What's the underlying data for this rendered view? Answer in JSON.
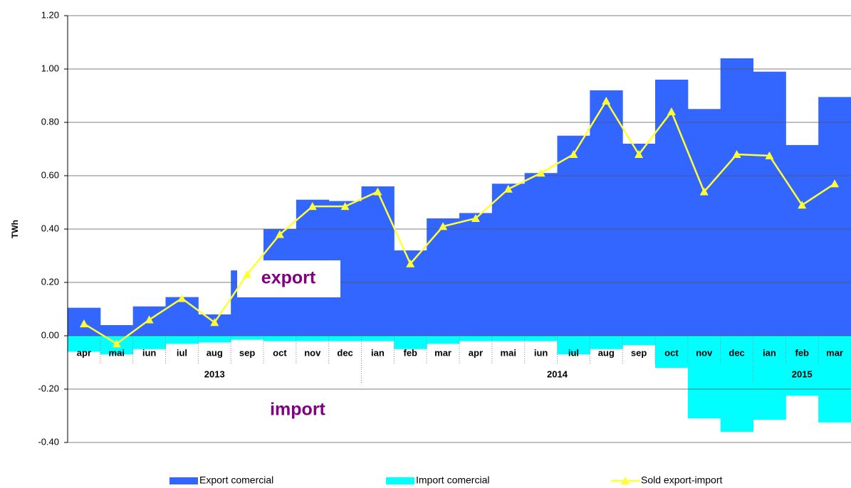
{
  "chart_data": {
    "type": "bar_line",
    "y_axis_label": "TWh",
    "categories": [
      "apr",
      "mai",
      "iun",
      "iul",
      "aug",
      "sep",
      "oct",
      "nov",
      "dec",
      "ian",
      "feb",
      "mar",
      "apr",
      "mai",
      "iun",
      "iul",
      "aug",
      "sep",
      "oct",
      "nov",
      "dec",
      "ian",
      "feb",
      "mar"
    ],
    "years": [
      "2013",
      "2014",
      "2015"
    ],
    "series": [
      {
        "name": "Export comercial",
        "color": "#3366ff",
        "kind": "area-bar",
        "values": [
          0.105,
          0.04,
          0.11,
          0.145,
          0.08,
          0.245,
          0.4,
          0.51,
          0.505,
          0.56,
          0.32,
          0.44,
          0.46,
          0.57,
          0.61,
          0.75,
          0.92,
          0.72,
          0.96,
          0.85,
          1.04,
          0.99,
          0.715,
          0.895
        ]
      },
      {
        "name": "Import comercial",
        "color": "#00ffff",
        "kind": "area-bar",
        "values": [
          -0.06,
          -0.07,
          -0.05,
          -0.03,
          -0.025,
          -0.015,
          -0.02,
          -0.02,
          -0.02,
          -0.02,
          -0.05,
          -0.03,
          -0.02,
          -0.02,
          -0.02,
          -0.07,
          -0.05,
          -0.035,
          -0.12,
          -0.31,
          -0.36,
          -0.315,
          -0.225,
          -0.325
        ]
      },
      {
        "name": "Sold export-import",
        "color": "#ffff33",
        "kind": "line",
        "values": [
          0.045,
          -0.03,
          0.06,
          0.14,
          0.05,
          0.23,
          0.38,
          0.485,
          0.485,
          0.54,
          0.27,
          0.41,
          0.44,
          0.55,
          0.61,
          0.68,
          0.88,
          0.68,
          0.84,
          0.54,
          0.68,
          0.675,
          0.49,
          0.57
        ]
      }
    ],
    "annotations": [
      "export",
      "import"
    ],
    "ylim": [
      -0.4,
      1.2
    ],
    "yticks": [
      {
        "value": -0.4,
        "label": "-0.40"
      },
      {
        "value": -0.2,
        "label": "-0.20"
      },
      {
        "value": 0,
        "label": "0.00"
      },
      {
        "value": 0.2,
        "label": "0.20"
      },
      {
        "value": 0.4,
        "label": "0.40"
      },
      {
        "value": 0.6,
        "label": "0.60"
      },
      {
        "value": 0.8,
        "label": "0.80"
      },
      {
        "value": 1.0,
        "label": "1.00"
      },
      {
        "value": 1.2,
        "label": "1.20"
      }
    ],
    "grid": true
  }
}
